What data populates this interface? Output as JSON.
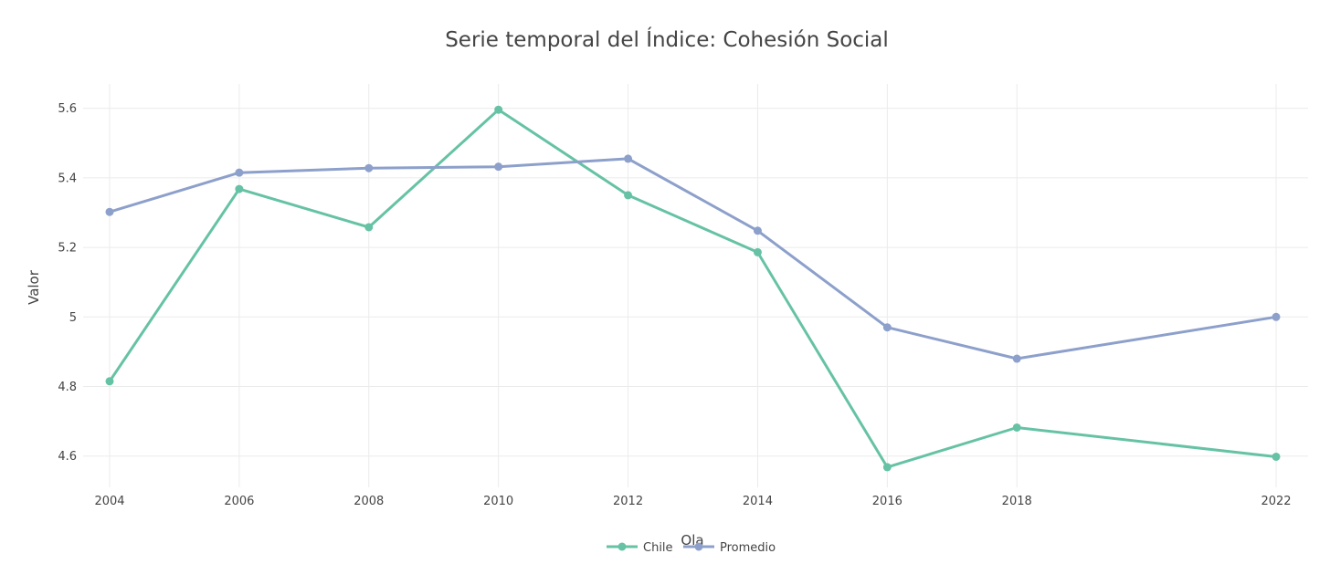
{
  "chart_data": {
    "type": "line",
    "title": "Serie temporal del Índice: Cohesión Social",
    "xlabel": "Ola",
    "ylabel": "Valor",
    "x": [
      2004,
      2006,
      2008,
      2010,
      2012,
      2014,
      2016,
      2018,
      2022
    ],
    "x_ticks": [
      "2004",
      "2006",
      "2008",
      "2010",
      "2012",
      "2014",
      "2016",
      "2018",
      "2022"
    ],
    "y_ticks": [
      4.6,
      4.8,
      5,
      5.2,
      5.4,
      5.6
    ],
    "y_tick_labels": [
      "4.6",
      "4.8",
      "5",
      "5.2",
      "5.4",
      "5.6"
    ],
    "xlim": [
      2004,
      2022
    ],
    "ylim": [
      4.51,
      5.67
    ],
    "grid": true,
    "legend_position": "bottom-center",
    "series": [
      {
        "name": "Chile",
        "color": "#66c2a5",
        "values": [
          4.815,
          5.368,
          5.258,
          5.596,
          5.35,
          5.186,
          4.568,
          4.682,
          4.598
        ]
      },
      {
        "name": "Promedio",
        "color": "#8da0cb",
        "values": [
          5.302,
          5.415,
          5.428,
          5.432,
          5.455,
          5.248,
          4.97,
          4.88,
          5.0
        ]
      }
    ]
  }
}
